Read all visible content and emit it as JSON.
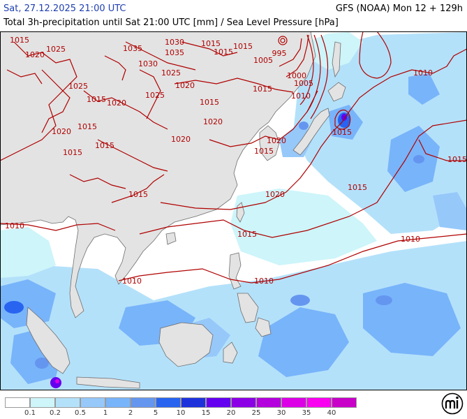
{
  "header": {
    "valid_time": "Sat, 27.12.2025 21:00 UTC",
    "model_run": "GFS (NOAA) Mon 12 + 129h",
    "description": "Total 3h-precipitation until Sat 21:00 UTC [mm] / Sea Level Pressure [hPa]"
  },
  "map": {
    "colors": {
      "ocean": "#ffffff",
      "land": "#e3e3e3",
      "coastline": "#6e6e6e",
      "isobar": "#b00000"
    },
    "isobar_labels": [
      "1015",
      "1025",
      "1020",
      "1035",
      "1030",
      "1035",
      "1015",
      "1015",
      "1015",
      "995",
      "1030",
      "1005",
      "1025",
      "1020",
      "1015",
      "1010",
      "1000",
      "1005",
      "1025",
      "1020",
      "1015",
      "1025",
      "1020",
      "1015",
      "1015",
      "1015",
      "1020",
      "1015",
      "1020",
      "1010",
      "1015",
      "1015",
      "1015",
      "1020",
      "1010",
      "1020",
      "1015",
      "1010",
      "1015",
      "1010",
      "1010",
      "1015"
    ]
  },
  "legend": {
    "ticks": [
      "0.1",
      "0.2",
      "0.5",
      "1",
      "2",
      "5",
      "10",
      "15",
      "20",
      "25",
      "30",
      "35",
      "40"
    ],
    "colors": [
      "#ffffff",
      "#cdf5fa",
      "#b4e1fa",
      "#96c8fa",
      "#78b4fa",
      "#6496f0",
      "#2864f0",
      "#1e32dc",
      "#6400f0",
      "#8c00e6",
      "#b400dc",
      "#dc00e6",
      "#fa00f0",
      "#c800c8"
    ]
  }
}
